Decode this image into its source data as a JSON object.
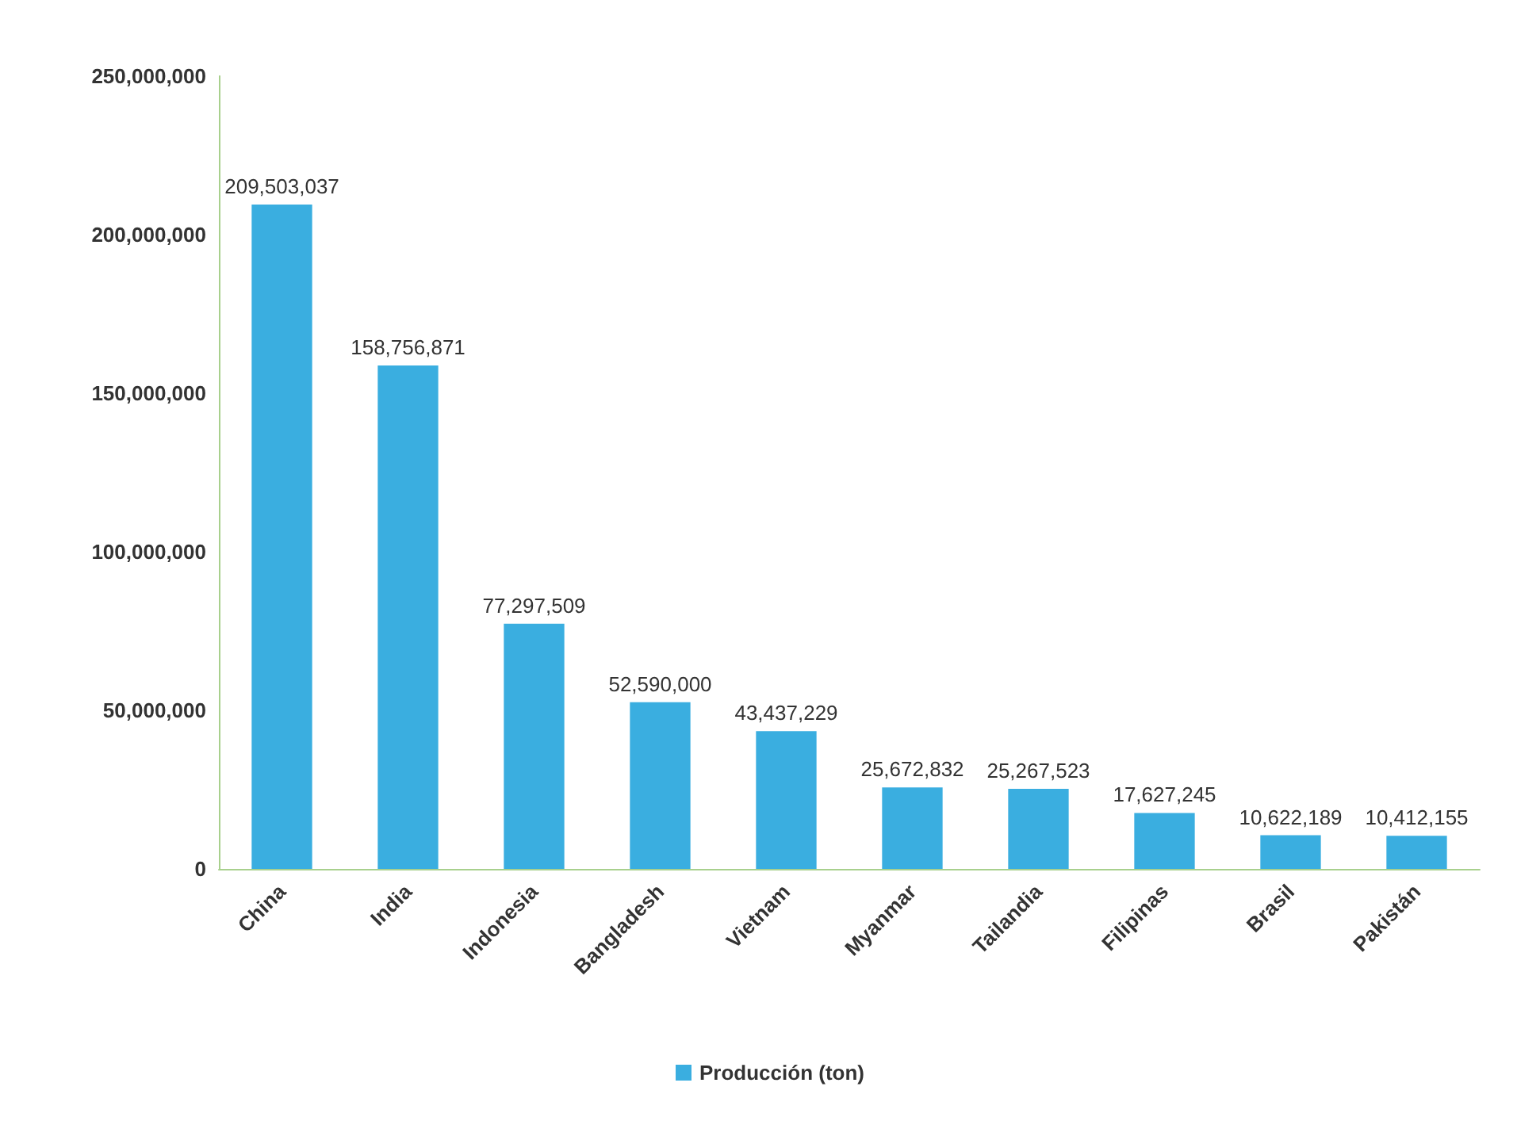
{
  "chart_data": {
    "type": "bar",
    "categories": [
      "China",
      "India",
      "Indonesia",
      "Bangladesh",
      "Vietnam",
      "Myanmar",
      "Tailandia",
      "Filipinas",
      "Brasil",
      "Pakistán"
    ],
    "series": [
      {
        "name": "Producción (ton)",
        "color": "#3aaee0",
        "values": [
          209503037,
          158756871,
          77297509,
          52590000,
          43437229,
          25672832,
          25267523,
          17627245,
          10622189,
          10412155
        ],
        "value_labels": [
          "209,503,037",
          "158,756,871",
          "77,297,509",
          "52,590,000",
          "43,437,229",
          "25,672,832",
          "25,267,523",
          "17,627,245",
          "10,622,189",
          "10,412,155"
        ]
      }
    ],
    "ylim": [
      0,
      250000000
    ],
    "yticks": [
      0,
      {
        "value": 50000000,
        "label": "50,000,000"
      },
      {
        "value": 100000000,
        "label": "100,000,000"
      },
      {
        "value": 150000000,
        "label": "150,000,000"
      },
      {
        "value": 200000000,
        "label": "200,000,000"
      },
      {
        "value": 250000000,
        "label": "250,000,000"
      }
    ],
    "grid": false,
    "legend": "bottom"
  }
}
